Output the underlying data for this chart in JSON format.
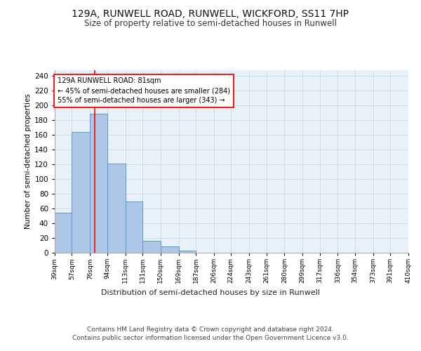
{
  "title1": "129A, RUNWELL ROAD, RUNWELL, WICKFORD, SS11 7HP",
  "title2": "Size of property relative to semi-detached houses in Runwell",
  "xlabel": "Distribution of semi-detached houses by size in Runwell",
  "ylabel": "Number of semi-detached properties",
  "footer1": "Contains HM Land Registry data © Crown copyright and database right 2024.",
  "footer2": "Contains public sector information licensed under the Open Government Licence v3.0.",
  "bar_edges": [
    39,
    57,
    76,
    94,
    113,
    131,
    150,
    169,
    187,
    206,
    224,
    243,
    261,
    280,
    299,
    317,
    336,
    354,
    373,
    391,
    410
  ],
  "bar_values": [
    54,
    164,
    189,
    121,
    70,
    16,
    9,
    3,
    0,
    0,
    0,
    0,
    0,
    0,
    0,
    0,
    0,
    0,
    0,
    0
  ],
  "bar_color": "#aec6e8",
  "bar_edge_color": "#5a9bc5",
  "grid_color": "#c8d8ea",
  "bg_color": "#e8f0f8",
  "red_line_x": 81,
  "annotation_text": "129A RUNWELL ROAD: 81sqm\n← 45% of semi-detached houses are smaller (284)\n55% of semi-detached houses are larger (343) →",
  "ylim": [
    0,
    248
  ],
  "yticks": [
    0,
    20,
    40,
    60,
    80,
    100,
    120,
    140,
    160,
    180,
    200,
    220,
    240
  ],
  "tick_labels": [
    "39sqm",
    "57sqm",
    "76sqm",
    "94sqm",
    "113sqm",
    "131sqm",
    "150sqm",
    "169sqm",
    "187sqm",
    "206sqm",
    "224sqm",
    "243sqm",
    "261sqm",
    "280sqm",
    "299sqm",
    "317sqm",
    "336sqm",
    "354sqm",
    "373sqm",
    "391sqm",
    "410sqm"
  ]
}
